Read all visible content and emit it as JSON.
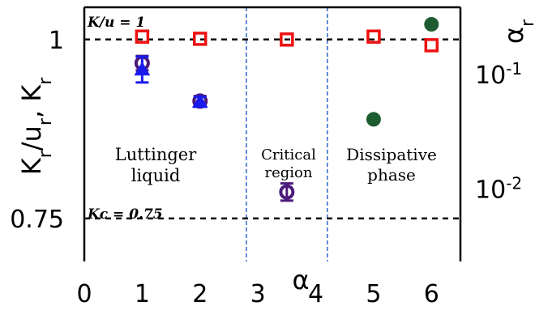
{
  "chart_data": {
    "type": "scatter",
    "xlabel": "α",
    "ylabel_left": "K_r/u_r, K_r",
    "ylabel_right": "α_r",
    "x_ticks": [
      "0",
      "1",
      "2",
      "3",
      "4",
      "5",
      "6"
    ],
    "xlim": [
      0,
      6.5
    ],
    "left_axis": {
      "ticks": [
        {
          "value": 1,
          "label": "1"
        },
        {
          "value": 0.75,
          "label": "0.75"
        }
      ],
      "ylim": [
        0.69,
        1.045
      ]
    },
    "right_axis": {
      "scale": "log",
      "ticks": [
        {
          "value": 0.1,
          "label": "10^-1"
        },
        {
          "value": 0.01,
          "label": "10^-2"
        }
      ],
      "ylim": [
        0.0023,
        0.38
      ]
    },
    "reference_lines": [
      {
        "label": "K/u = 1",
        "label_display": "K/u = 1",
        "value": 1
      },
      {
        "label": "K_c = 0.75",
        "label_display": "Kc = 0.75",
        "value": 0.75
      }
    ],
    "region_boundaries": [
      2.8,
      4.2
    ],
    "regions": [
      {
        "name": "Luttinger liquid",
        "lines": [
          "Luttinger",
          "liquid"
        ]
      },
      {
        "name": "Critical region",
        "lines": [
          "Critical",
          "region"
        ]
      },
      {
        "name": "Dissipative phase",
        "lines": [
          "Dissipative",
          "phase"
        ]
      }
    ],
    "series": [
      {
        "marker": "square",
        "color": "#ee1111",
        "axis": "left",
        "points": [
          {
            "x": 1,
            "y": 1.004
          },
          {
            "x": 2,
            "y": 1.001
          },
          {
            "x": 3.5,
            "y": 1.0
          },
          {
            "x": 5,
            "y": 1.004
          },
          {
            "x": 6,
            "y": 0.992
          }
        ]
      },
      {
        "marker": "open-circle",
        "color": "#4b1a7a",
        "axis": "left",
        "points": [
          {
            "x": 1,
            "y": 0.967,
            "err": 0.01
          },
          {
            "x": 2,
            "y": 0.914,
            "err": 0.007
          },
          {
            "x": 3.5,
            "y": 0.787,
            "err": 0.012
          }
        ]
      },
      {
        "marker": "triangle",
        "color": "#1a1aee",
        "axis": "left",
        "points": [
          {
            "x": 1,
            "y": 0.958,
            "err": 0.018
          },
          {
            "x": 2,
            "y": 0.913,
            "err": 0.007
          }
        ]
      },
      {
        "marker": "filled-circle",
        "color": "#1d5c30",
        "axis": "right",
        "points": [
          {
            "x": 5,
            "y": 0.04
          },
          {
            "x": 6,
            "y": 0.27
          }
        ]
      }
    ]
  }
}
